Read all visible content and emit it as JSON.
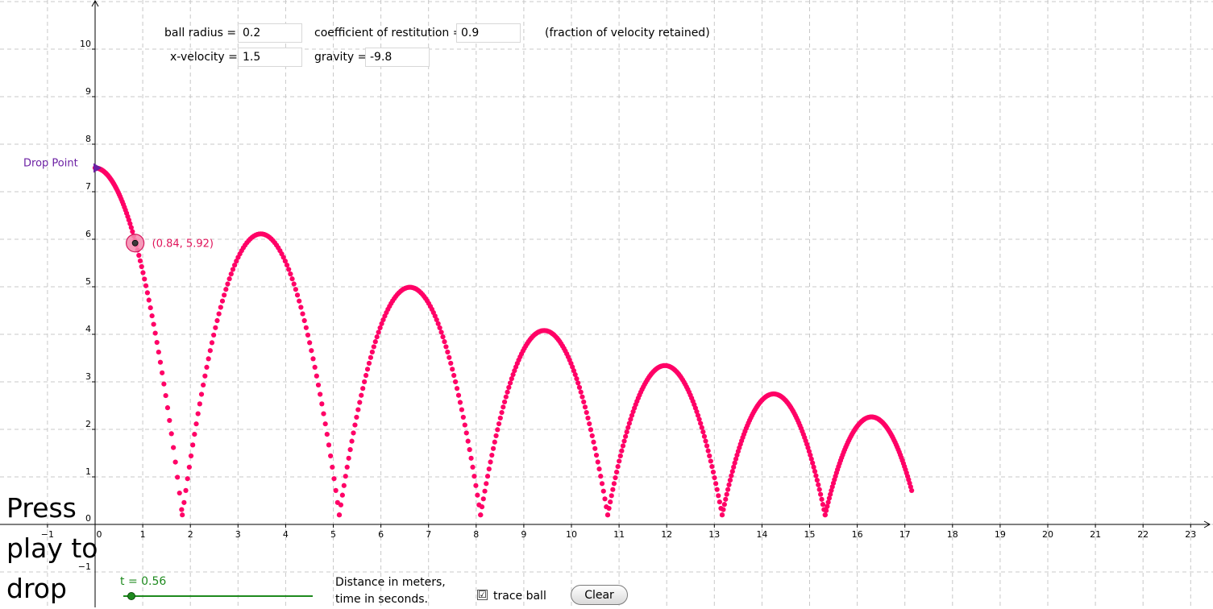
{
  "controls": {
    "ball_radius": {
      "label": "ball radius =",
      "value": "0.2"
    },
    "x_velocity": {
      "label": "x-velocity =",
      "value": "1.5"
    },
    "restitution": {
      "label": "coefficient of restitution =",
      "value": "0.9",
      "note": "(fraction of velocity retained)"
    },
    "gravity": {
      "label": "gravity =",
      "value": "-9.8"
    }
  },
  "drop_point_label": "Drop Point",
  "ball_label": "(0.84, 5.92)",
  "press_label": [
    "Press",
    "play to",
    "drop"
  ],
  "slider": {
    "label": "t = 0.56",
    "value": 0.56
  },
  "caption": [
    "Distance in meters,",
    "time in seconds."
  ],
  "trace": {
    "label": "trace ball",
    "checked": true,
    "check_glyph": "☑"
  },
  "clear_label": "Clear",
  "colors": {
    "trace": "#ff0066",
    "drop_point": "#6b1fa3",
    "slider": "#1e8a1e",
    "grid": "#c8c8c8"
  },
  "chart_data": {
    "type": "scatter",
    "x_ticks": [
      -1,
      0,
      1,
      2,
      3,
      4,
      5,
      6,
      7,
      8,
      9,
      10,
      11,
      12,
      13,
      14,
      15,
      16,
      17,
      18,
      19,
      20,
      21,
      22,
      23
    ],
    "y_ticks": [
      0,
      1,
      2,
      3,
      4,
      5,
      6,
      7,
      8,
      9,
      10
    ],
    "xlim": [
      -2,
      23.5
    ],
    "ylim": [
      -1.8,
      11
    ],
    "grid": true,
    "drop_point": [
      0,
      7.5
    ],
    "ball": [
      0.84,
      5.92
    ],
    "trace_params": {
      "x_velocity": 1.5,
      "gravity": -9.8,
      "restitution": 0.9,
      "radius": 0.2,
      "start_height": 7.5
    }
  }
}
